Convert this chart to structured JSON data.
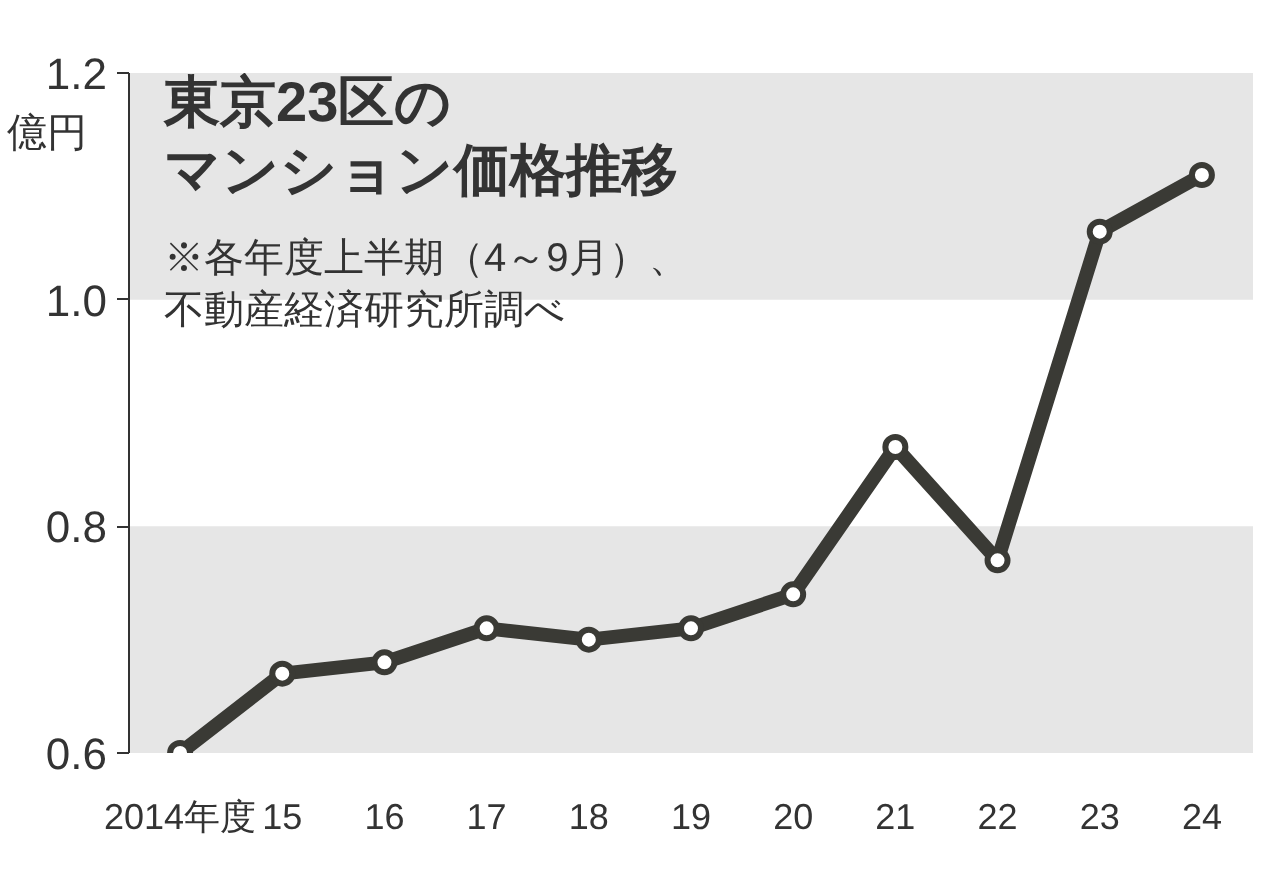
{
  "chart_data": {
    "type": "line",
    "title": "東京23区のマンション価格推移",
    "subtitle": "※各年度上半期（4～9月）、不動産経済研究所調べ",
    "ylabel": "億円",
    "categories": [
      "2014年度",
      "15",
      "16",
      "17",
      "18",
      "19",
      "20",
      "21",
      "22",
      "23",
      "24"
    ],
    "series": [
      {
        "color": "#3a3a35",
        "values": [
          0.6,
          0.67,
          0.68,
          0.71,
          0.7,
          0.71,
          0.74,
          0.87,
          0.77,
          1.06,
          1.11
        ]
      }
    ],
    "ylim": [
      0.6,
      1.2
    ],
    "yticks": [
      0.6,
      0.8,
      {
        "value": 1.0,
        "label": "1.0"
      },
      1.2
    ],
    "bands": [
      {
        "axis": "y",
        "from": 0.6,
        "to": 0.8,
        "color": "#e6e6e6"
      },
      {
        "axis": "y",
        "from": 1.0,
        "to": 1.2,
        "color": "#e6e6e6"
      }
    ],
    "marker": "circle",
    "line_style": "solid",
    "grid": false
  }
}
